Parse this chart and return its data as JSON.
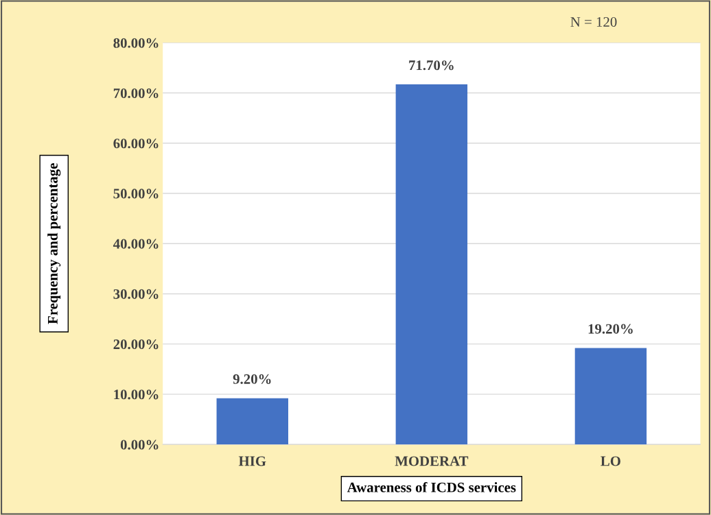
{
  "chart_data": {
    "type": "bar",
    "categories": [
      "HIG",
      "MODERAT",
      "LO"
    ],
    "values": [
      9.2,
      71.7,
      19.2
    ],
    "value_labels": [
      "9.20%",
      "71.70%",
      "19.20%"
    ],
    "color": "#4472c4",
    "xlabel": "Awareness of ICDS services",
    "ylabel": "Frequency and percentage",
    "annotations": [
      "N = 120"
    ],
    "ylim": [
      0,
      80
    ],
    "yticks": [
      {
        "value": 0,
        "label": "0.00%"
      },
      {
        "value": 10,
        "label": "10.00%"
      },
      {
        "value": 20,
        "label": "20.00%"
      },
      {
        "value": 30,
        "label": "30.00%"
      },
      {
        "value": 40,
        "label": "40.00%"
      },
      {
        "value": 50,
        "label": "50.00%"
      },
      {
        "value": 60,
        "label": "60.00%"
      },
      {
        "value": 70,
        "label": "70.00%"
      },
      {
        "value": 80,
        "label": "80.00%"
      }
    ],
    "grid": "y",
    "legend": false
  }
}
